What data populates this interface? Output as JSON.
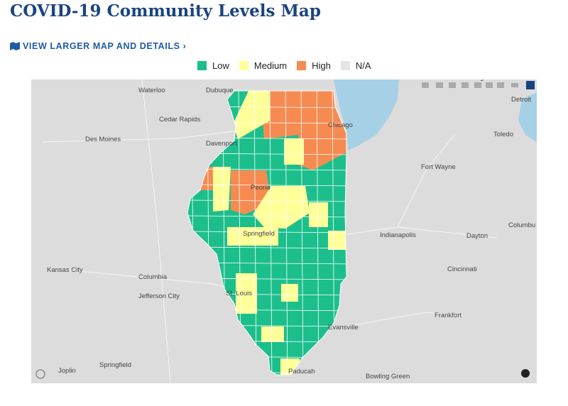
{
  "header": {
    "title": "COVID-19 Community Levels Map",
    "link": "VIEW LARGER MAP AND DETAILS ›"
  },
  "legend": [
    {
      "label": "Low",
      "color": "#1cbf8c"
    },
    {
      "label": "Medium",
      "color": "#ffff99"
    },
    {
      "label": "High",
      "color": "#f68b52"
    },
    {
      "label": "N/A",
      "color": "#e4e4e4"
    }
  ],
  "cities": [
    "Waterloo",
    "Dubuque",
    "Cedar Rapids",
    "Des Moines",
    "Davenport",
    "Chicago",
    "Peoria",
    "Springfield",
    "Kansas City",
    "Columbia",
    "Jefferson City",
    "St. Louis",
    "Evansville",
    "Springfield",
    "Joplin",
    "Paducah",
    "Bowling Green",
    "Fort Wayne",
    "Indianapolis",
    "Dayton",
    "Cincinnati",
    "Frankfort",
    "Toledo",
    "Detroit",
    "Columbu",
    "Lansing"
  ]
}
